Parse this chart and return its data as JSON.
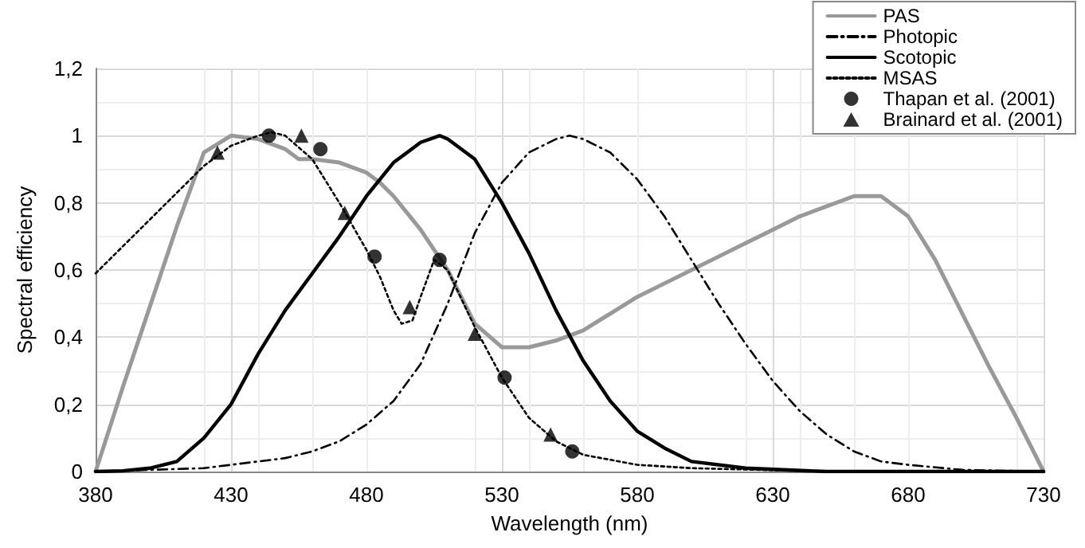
{
  "chart_data": {
    "type": "line",
    "xlabel": "Wavelength (nm)",
    "ylabel": "Spectral efficiency",
    "xlim": [
      380,
      730
    ],
    "xticks": [
      380,
      430,
      480,
      530,
      580,
      630,
      680,
      730
    ],
    "ylim": [
      0,
      1.2
    ],
    "yticks": [
      0,
      {
        "value": 0.2,
        "label": "0,2"
      },
      {
        "value": 0.4,
        "label": "0,4"
      },
      {
        "value": 0.6,
        "label": "0,6"
      },
      {
        "value": 0.8,
        "label": "0,8"
      },
      1,
      {
        "value": 1.2,
        "label": "1,2"
      }
    ],
    "grid": true,
    "legend": "top right",
    "series": [
      {
        "name": "PAS",
        "color": "#999999",
        "line_style": "solid",
        "marker": "none",
        "x": [
          380,
          390,
          400,
          410,
          420,
          430,
          440,
          450,
          455,
          460,
          470,
          480,
          485,
          490,
          500,
          510,
          520,
          530,
          540,
          550,
          560,
          570,
          580,
          590,
          600,
          610,
          620,
          630,
          640,
          650,
          660,
          670,
          680,
          690,
          700,
          710,
          720,
          730
        ],
        "values": [
          0,
          0.25,
          0.49,
          0.73,
          0.95,
          1.0,
          0.99,
          0.96,
          0.93,
          0.93,
          0.92,
          0.89,
          0.86,
          0.82,
          0.72,
          0.6,
          0.44,
          0.37,
          0.37,
          0.39,
          0.42,
          0.47,
          0.52,
          0.56,
          0.6,
          0.64,
          0.68,
          0.72,
          0.76,
          0.79,
          0.82,
          0.82,
          0.76,
          0.63,
          0.47,
          0.31,
          0.16,
          0
        ]
      },
      {
        "name": "Photopic",
        "color": "#000000",
        "line_style": "dashed",
        "marker": "none",
        "x": [
          380,
          400,
          420,
          430,
          440,
          450,
          460,
          470,
          480,
          490,
          500,
          510,
          520,
          530,
          540,
          550,
          555,
          560,
          570,
          580,
          590,
          600,
          610,
          620,
          630,
          640,
          650,
          660,
          670,
          680,
          700,
          730
        ],
        "values": [
          0,
          0.005,
          0.01,
          0.02,
          0.03,
          0.04,
          0.06,
          0.09,
          0.14,
          0.21,
          0.32,
          0.5,
          0.71,
          0.86,
          0.95,
          0.99,
          1.0,
          0.99,
          0.95,
          0.87,
          0.76,
          0.63,
          0.5,
          0.38,
          0.27,
          0.18,
          0.11,
          0.06,
          0.03,
          0.02,
          0.005,
          0
        ]
      },
      {
        "name": "Scotopic",
        "color": "#000000",
        "line_style": "solid",
        "marker": "none",
        "x": [
          380,
          390,
          400,
          410,
          420,
          430,
          440,
          450,
          460,
          470,
          480,
          490,
          500,
          507,
          510,
          520,
          530,
          540,
          550,
          560,
          570,
          580,
          590,
          600,
          620,
          650,
          730
        ],
        "values": [
          0,
          0.002,
          0.01,
          0.03,
          0.1,
          0.2,
          0.35,
          0.48,
          0.59,
          0.7,
          0.82,
          0.92,
          0.98,
          1.0,
          0.99,
          0.93,
          0.8,
          0.65,
          0.48,
          0.33,
          0.21,
          0.12,
          0.07,
          0.03,
          0.01,
          0,
          0
        ]
      },
      {
        "name": "MSAS",
        "color": "#000000",
        "line_style": "dotted",
        "marker": "none",
        "x": [
          380,
          390,
          400,
          410,
          420,
          430,
          440,
          445,
          450,
          460,
          470,
          480,
          485,
          490,
          493,
          497,
          500,
          505,
          510,
          520,
          530,
          540,
          550,
          560,
          580,
          600,
          650,
          730
        ],
        "values": [
          0.59,
          0.67,
          0.75,
          0.83,
          0.91,
          0.97,
          1.0,
          1.01,
          1.0,
          0.93,
          0.8,
          0.66,
          0.58,
          0.48,
          0.44,
          0.45,
          0.52,
          0.63,
          0.6,
          0.43,
          0.28,
          0.16,
          0.09,
          0.05,
          0.02,
          0.01,
          0,
          0
        ]
      },
      {
        "name": "Thapan et al. (2001)",
        "type": "scatter",
        "color": "#000000",
        "marker": "circle",
        "x": [
          444,
          463,
          483,
          507,
          531,
          556
        ],
        "values": [
          1.0,
          0.96,
          0.64,
          0.63,
          0.28,
          0.06
        ]
      },
      {
        "name": "Brainard et al. (2001)",
        "type": "scatter",
        "color": "#000000",
        "marker": "triangle",
        "x": [
          425,
          456,
          472,
          496,
          520,
          548
        ],
        "values": [
          0.95,
          1.0,
          0.77,
          0.49,
          0.41,
          0.11
        ]
      }
    ]
  }
}
